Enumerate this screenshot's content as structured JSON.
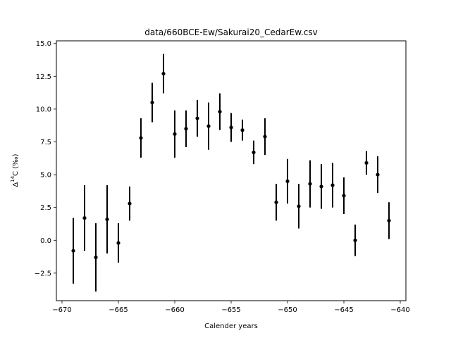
{
  "chart_data": {
    "type": "scatter",
    "title": "data/660BCE-Ew/Sakurai20_CedarEw.csv",
    "xlabel": "Calender years",
    "ylabel_parts": [
      "Δ",
      "14",
      "C (‰)"
    ],
    "xlim": [
      -670.5,
      -639.5
    ],
    "ylim": [
      -4.6,
      15.2
    ],
    "xticks": [
      -670,
      -665,
      -660,
      -655,
      -650,
      -645,
      -640
    ],
    "xtick_labels": [
      "−670",
      "−665",
      "−660",
      "−655",
      "−650",
      "−645",
      "−640"
    ],
    "yticks": [
      -2.5,
      0.0,
      2.5,
      5.0,
      7.5,
      10.0,
      12.5,
      15.0
    ],
    "ytick_labels": [
      "−2.5",
      "0.0",
      "2.5",
      "5.0",
      "7.5",
      "10.0",
      "12.5",
      "15.0"
    ],
    "grid": false,
    "marker_color": "#000000",
    "points": [
      {
        "x": -669,
        "y": -0.8,
        "err": 2.5
      },
      {
        "x": -668,
        "y": 1.7,
        "err": 2.5
      },
      {
        "x": -667,
        "y": -1.3,
        "err": 2.6
      },
      {
        "x": -666,
        "y": 1.6,
        "err": 2.6
      },
      {
        "x": -665,
        "y": -0.2,
        "err": 1.5
      },
      {
        "x": -664,
        "y": 2.8,
        "err": 1.3
      },
      {
        "x": -663,
        "y": 7.8,
        "err": 1.5
      },
      {
        "x": -662,
        "y": 10.5,
        "err": 1.5
      },
      {
        "x": -661,
        "y": 12.7,
        "err": 1.5
      },
      {
        "x": -660,
        "y": 8.1,
        "err": 1.8
      },
      {
        "x": -659,
        "y": 8.5,
        "err": 1.4
      },
      {
        "x": -658,
        "y": 9.3,
        "err": 1.4
      },
      {
        "x": -657,
        "y": 8.7,
        "err": 1.8
      },
      {
        "x": -656,
        "y": 9.8,
        "err": 1.4
      },
      {
        "x": -655,
        "y": 8.6,
        "err": 1.1
      },
      {
        "x": -654,
        "y": 8.4,
        "err": 0.8
      },
      {
        "x": -653,
        "y": 6.7,
        "err": 0.9
      },
      {
        "x": -652,
        "y": 7.9,
        "err": 1.4
      },
      {
        "x": -651,
        "y": 2.9,
        "err": 1.4
      },
      {
        "x": -650,
        "y": 4.5,
        "err": 1.7
      },
      {
        "x": -649,
        "y": 2.6,
        "err": 1.7
      },
      {
        "x": -648,
        "y": 4.3,
        "err": 1.8
      },
      {
        "x": -647,
        "y": 4.1,
        "err": 1.7
      },
      {
        "x": -646,
        "y": 4.2,
        "err": 1.7
      },
      {
        "x": -645,
        "y": 3.4,
        "err": 1.4
      },
      {
        "x": -644,
        "y": 0.0,
        "err": 1.2
      },
      {
        "x": -643,
        "y": 5.9,
        "err": 0.9
      },
      {
        "x": -642,
        "y": 5.0,
        "err": 1.4
      },
      {
        "x": -641,
        "y": 1.5,
        "err": 1.4
      }
    ]
  }
}
